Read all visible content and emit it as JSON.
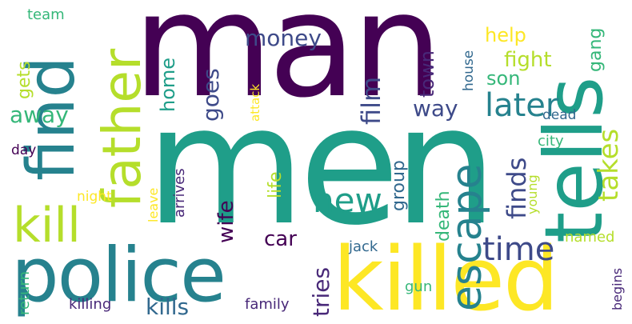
{
  "palette": {
    "dark_purple": "#440154",
    "indigo": "#482878",
    "slate_blue": "#3e4a89",
    "steel_blue": "#31688e",
    "teal_blue": "#26828e",
    "teal": "#1f9e89",
    "green": "#35b779",
    "light_green": "#6ece58",
    "lime": "#b5de2b",
    "yellow": "#fde725"
  },
  "words": {
    "man": "man",
    "men": "men",
    "tells": "tells",
    "find": "find",
    "father": "father",
    "killed": "killed",
    "police": "police",
    "kill": "kill",
    "escape": "escape",
    "new": "new",
    "later": "later",
    "time": "time",
    "finds": "finds",
    "film": "film",
    "takes": "takes",
    "money": "money",
    "goes": "goes",
    "way": "way",
    "group": "group",
    "help": "help",
    "fight": "fight",
    "son": "son",
    "gang": "gang",
    "town": "town",
    "home": "home",
    "gets": "gets",
    "away": "away",
    "team": "team",
    "house": "house",
    "life": "life",
    "wife": "wife",
    "car": "car",
    "death": "death",
    "tries": "tries",
    "kills": "kills",
    "killing": "killing",
    "family": "family",
    "return": "return",
    "gun": "gun",
    "jack": "jack",
    "begins": "begins",
    "named": "named",
    "city": "city",
    "young": "young",
    "dead": "dead",
    "attack": "attack",
    "day": "day",
    "night": "night",
    "leave": "leave",
    "arrives": "arrives"
  }
}
